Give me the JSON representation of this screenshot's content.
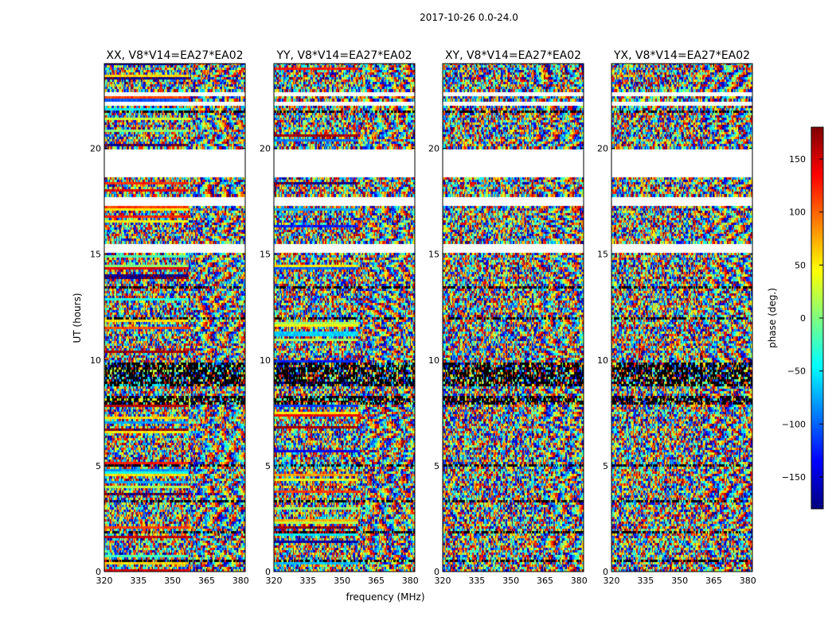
{
  "figure": {
    "suptitle": "2017-10-26 0.0-24.0",
    "xlabel": "frequency (MHz)",
    "ylabel": "UT (hours)",
    "colorbar": {
      "label": "phase (deg.)",
      "range": [
        -180,
        180
      ],
      "ticks": [
        -150,
        -100,
        -50,
        0,
        50,
        100,
        150
      ],
      "tick_labels": [
        "−150",
        "−100",
        "−50",
        "0",
        "50",
        "100",
        "150"
      ],
      "colormap": "jet",
      "colormap_colors": [
        "#00007f",
        "#0000ff",
        "#007fff",
        "#00ffff",
        "#7fff7f",
        "#ffff00",
        "#ff7f00",
        "#ff0000",
        "#7f0000"
      ]
    }
  },
  "chart_data": [
    {
      "type": "heatmap",
      "title": "XX, V8*V14=EA27*EA02",
      "xlim": [
        320,
        382
      ],
      "ylim": [
        0,
        24
      ],
      "xticks": [
        320,
        335,
        350,
        365,
        380
      ],
      "yticks": [
        0,
        5,
        10,
        15,
        20
      ],
      "z": "phase (deg.)"
    },
    {
      "type": "heatmap",
      "title": "YY, V8*V14=EA27*EA02",
      "xlim": [
        320,
        382
      ],
      "ylim": [
        0,
        24
      ],
      "xticks": [
        320,
        335,
        350,
        365,
        380
      ],
      "yticks": [
        0,
        5,
        10,
        15,
        20
      ],
      "z": "phase (deg.)"
    },
    {
      "type": "heatmap",
      "title": "XY, V8*V14=EA27*EA02",
      "xlim": [
        320,
        382
      ],
      "ylim": [
        0,
        24
      ],
      "xticks": [
        320,
        335,
        350,
        365,
        380
      ],
      "yticks": [
        0,
        5,
        10,
        15,
        20
      ],
      "z": "phase (deg.)"
    },
    {
      "type": "heatmap",
      "title": "YX, V8*V14=EA27*EA02",
      "xlim": [
        320,
        382
      ],
      "ylim": [
        0,
        24
      ],
      "xticks": [
        320,
        335,
        350,
        365,
        380
      ],
      "yticks": [
        0,
        5,
        10,
        15,
        20
      ],
      "z": "phase (deg.)"
    }
  ],
  "flagged_gaps_ut_hours": [
    [
      19.55,
      19.95
    ],
    [
      18.6,
      19.55
    ],
    [
      17.3,
      17.7
    ],
    [
      15.0,
      15.5
    ],
    [
      22.4,
      22.6
    ],
    [
      22.0,
      22.15
    ]
  ],
  "black_row_bands_ut_hours": [
    [
      8.8,
      9.9
    ],
    [
      7.9,
      8.3
    ],
    [
      4.9,
      5.1
    ],
    [
      3.3,
      3.4
    ],
    [
      1.8,
      1.9
    ],
    [
      0.5,
      0.6
    ],
    [
      13.4,
      13.5
    ],
    [
      11.9,
      12.0
    ],
    [
      21.7,
      21.8
    ]
  ]
}
